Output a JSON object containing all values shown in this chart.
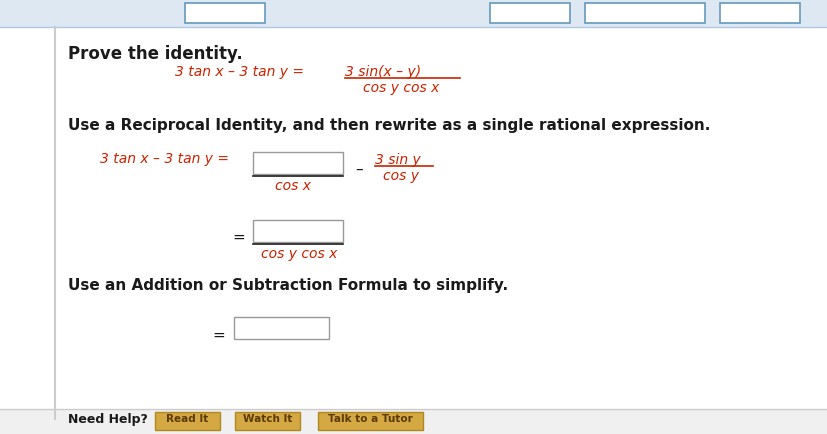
{
  "bg_color": "#ffffff",
  "border_color": "#cccccc",
  "text_color_black": "#1a1a1a",
  "text_color_red": "#cc2200",
  "title": "Prove the identity.",
  "eq1_left": "3 tan x – 3 tan y = ",
  "eq1_num": "3 sin(x – y)",
  "eq1_den": "cos y cos x",
  "step1_text": "Use a Reciprocal Identity, and then rewrite as a single rational expression.",
  "eq2_left": "3 tan x – 3 tan y =",
  "eq2_minus": "–",
  "eq2_frac2_num": "3 sin y",
  "eq2_frac2_den": "cos y",
  "eq2_frac1_den": "cos x",
  "eq3_den": "cos y cos x",
  "step2_text": "Use an Addition or Subtraction Formula to simplify.",
  "input_box_color": "#ffffff",
  "input_box_edge": "#999999",
  "tab_bar_color": "#dde8f3",
  "tab_border_color": "#6699bb",
  "bottom_bar_color": "#f0f0f0",
  "btn_color": "#d4a843",
  "btn_text_color": "#5a3a00",
  "need_help_text": "Need Help?",
  "btn_labels": [
    "Read It",
    "Watch It",
    "Talk to a Tutor"
  ]
}
